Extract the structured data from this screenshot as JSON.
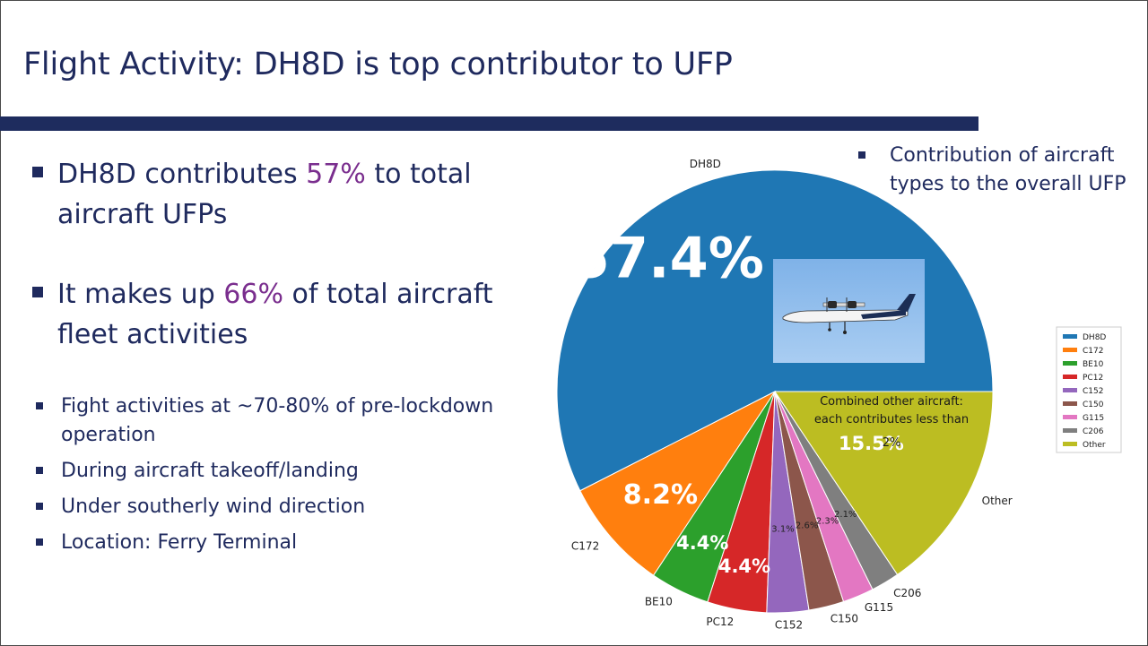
{
  "slide": {
    "title": "Flight Activity:  DH8D is top contributor to UFP",
    "bullets_large": [
      {
        "pre": "DH8D contributes ",
        "accent": "57%",
        "post": " to total aircraft UFPs"
      },
      {
        "pre": "It makes up ",
        "accent": "66%",
        "post": " of total aircraft fleet activities"
      }
    ],
    "bullets_small": [
      "Fight activities at ~70-80% of pre-lockdown operation",
      "During aircraft takeoff/landing",
      "Under southerly wind direction",
      "Location: Ferry Terminal"
    ],
    "note": "Contribution of aircraft types to the overall UFP"
  },
  "colors": {
    "title": "#1f2a5e",
    "accent": "#7a2e8e",
    "rule": "#1e2c5e"
  },
  "chart_data": {
    "type": "pie",
    "categories": [
      "DH8D",
      "C172",
      "BE10",
      "PC12",
      "C152",
      "C150",
      "G115",
      "C206",
      "Other"
    ],
    "values": [
      57.4,
      8.2,
      4.4,
      4.4,
      3.1,
      2.6,
      2.3,
      2.1,
      15.5
    ],
    "value_labels": [
      "57.4%",
      "8.2%",
      "4.4%",
      "4.4%",
      "3.1%",
      "2.6%",
      "2.3%",
      "2.1%",
      "15.5%"
    ],
    "colors": [
      "#1f77b4",
      "#ff7f0e",
      "#2ca02c",
      "#d62728",
      "#9467bd",
      "#8c564b",
      "#e377c2",
      "#7f7f7f",
      "#bcbd22"
    ],
    "legend": [
      "DH8D",
      "C172",
      "BE10",
      "PC12",
      "C152",
      "C150",
      "G115",
      "C206",
      "Other"
    ],
    "legend_position": "right",
    "annotation": "Combined other aircraft: each contributes less than 2%",
    "image": "airplane-photo"
  }
}
